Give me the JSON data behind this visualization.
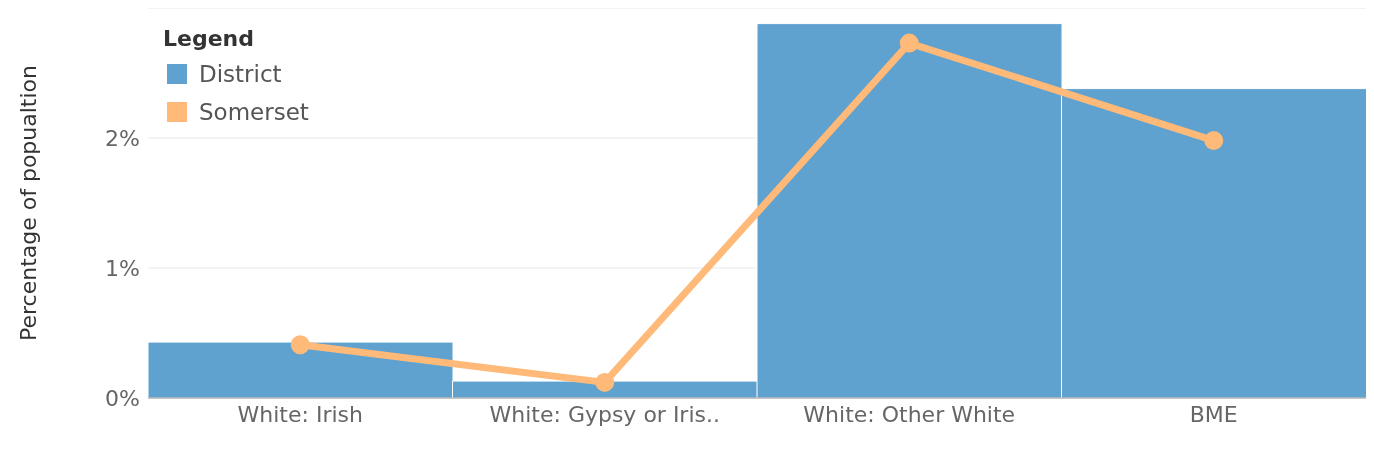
{
  "chart_data": {
    "type": "bar",
    "ylabel": "Percentage of popualtion",
    "legend_title": "Legend",
    "categories": [
      "White: Irish",
      "White: Gypsy or Iris..",
      "White: Other White",
      "BME"
    ],
    "series": [
      {
        "name": "District",
        "color": "#5fa2cf",
        "values": [
          0.43,
          0.13,
          2.88,
          2.38
        ]
      },
      {
        "name": "Somerset",
        "type": "line",
        "color": "#ffb978",
        "values": [
          0.41,
          0.12,
          2.73,
          1.98
        ]
      }
    ],
    "ylim": [
      0,
      3
    ],
    "yticks": [
      {
        "value": 0,
        "label": "0%"
      },
      {
        "value": 1,
        "label": "1%"
      },
      {
        "value": 2,
        "label": "2%"
      }
    ],
    "grid": "y",
    "legend": "top left",
    "marker": "circle",
    "line_style": "solid"
  }
}
